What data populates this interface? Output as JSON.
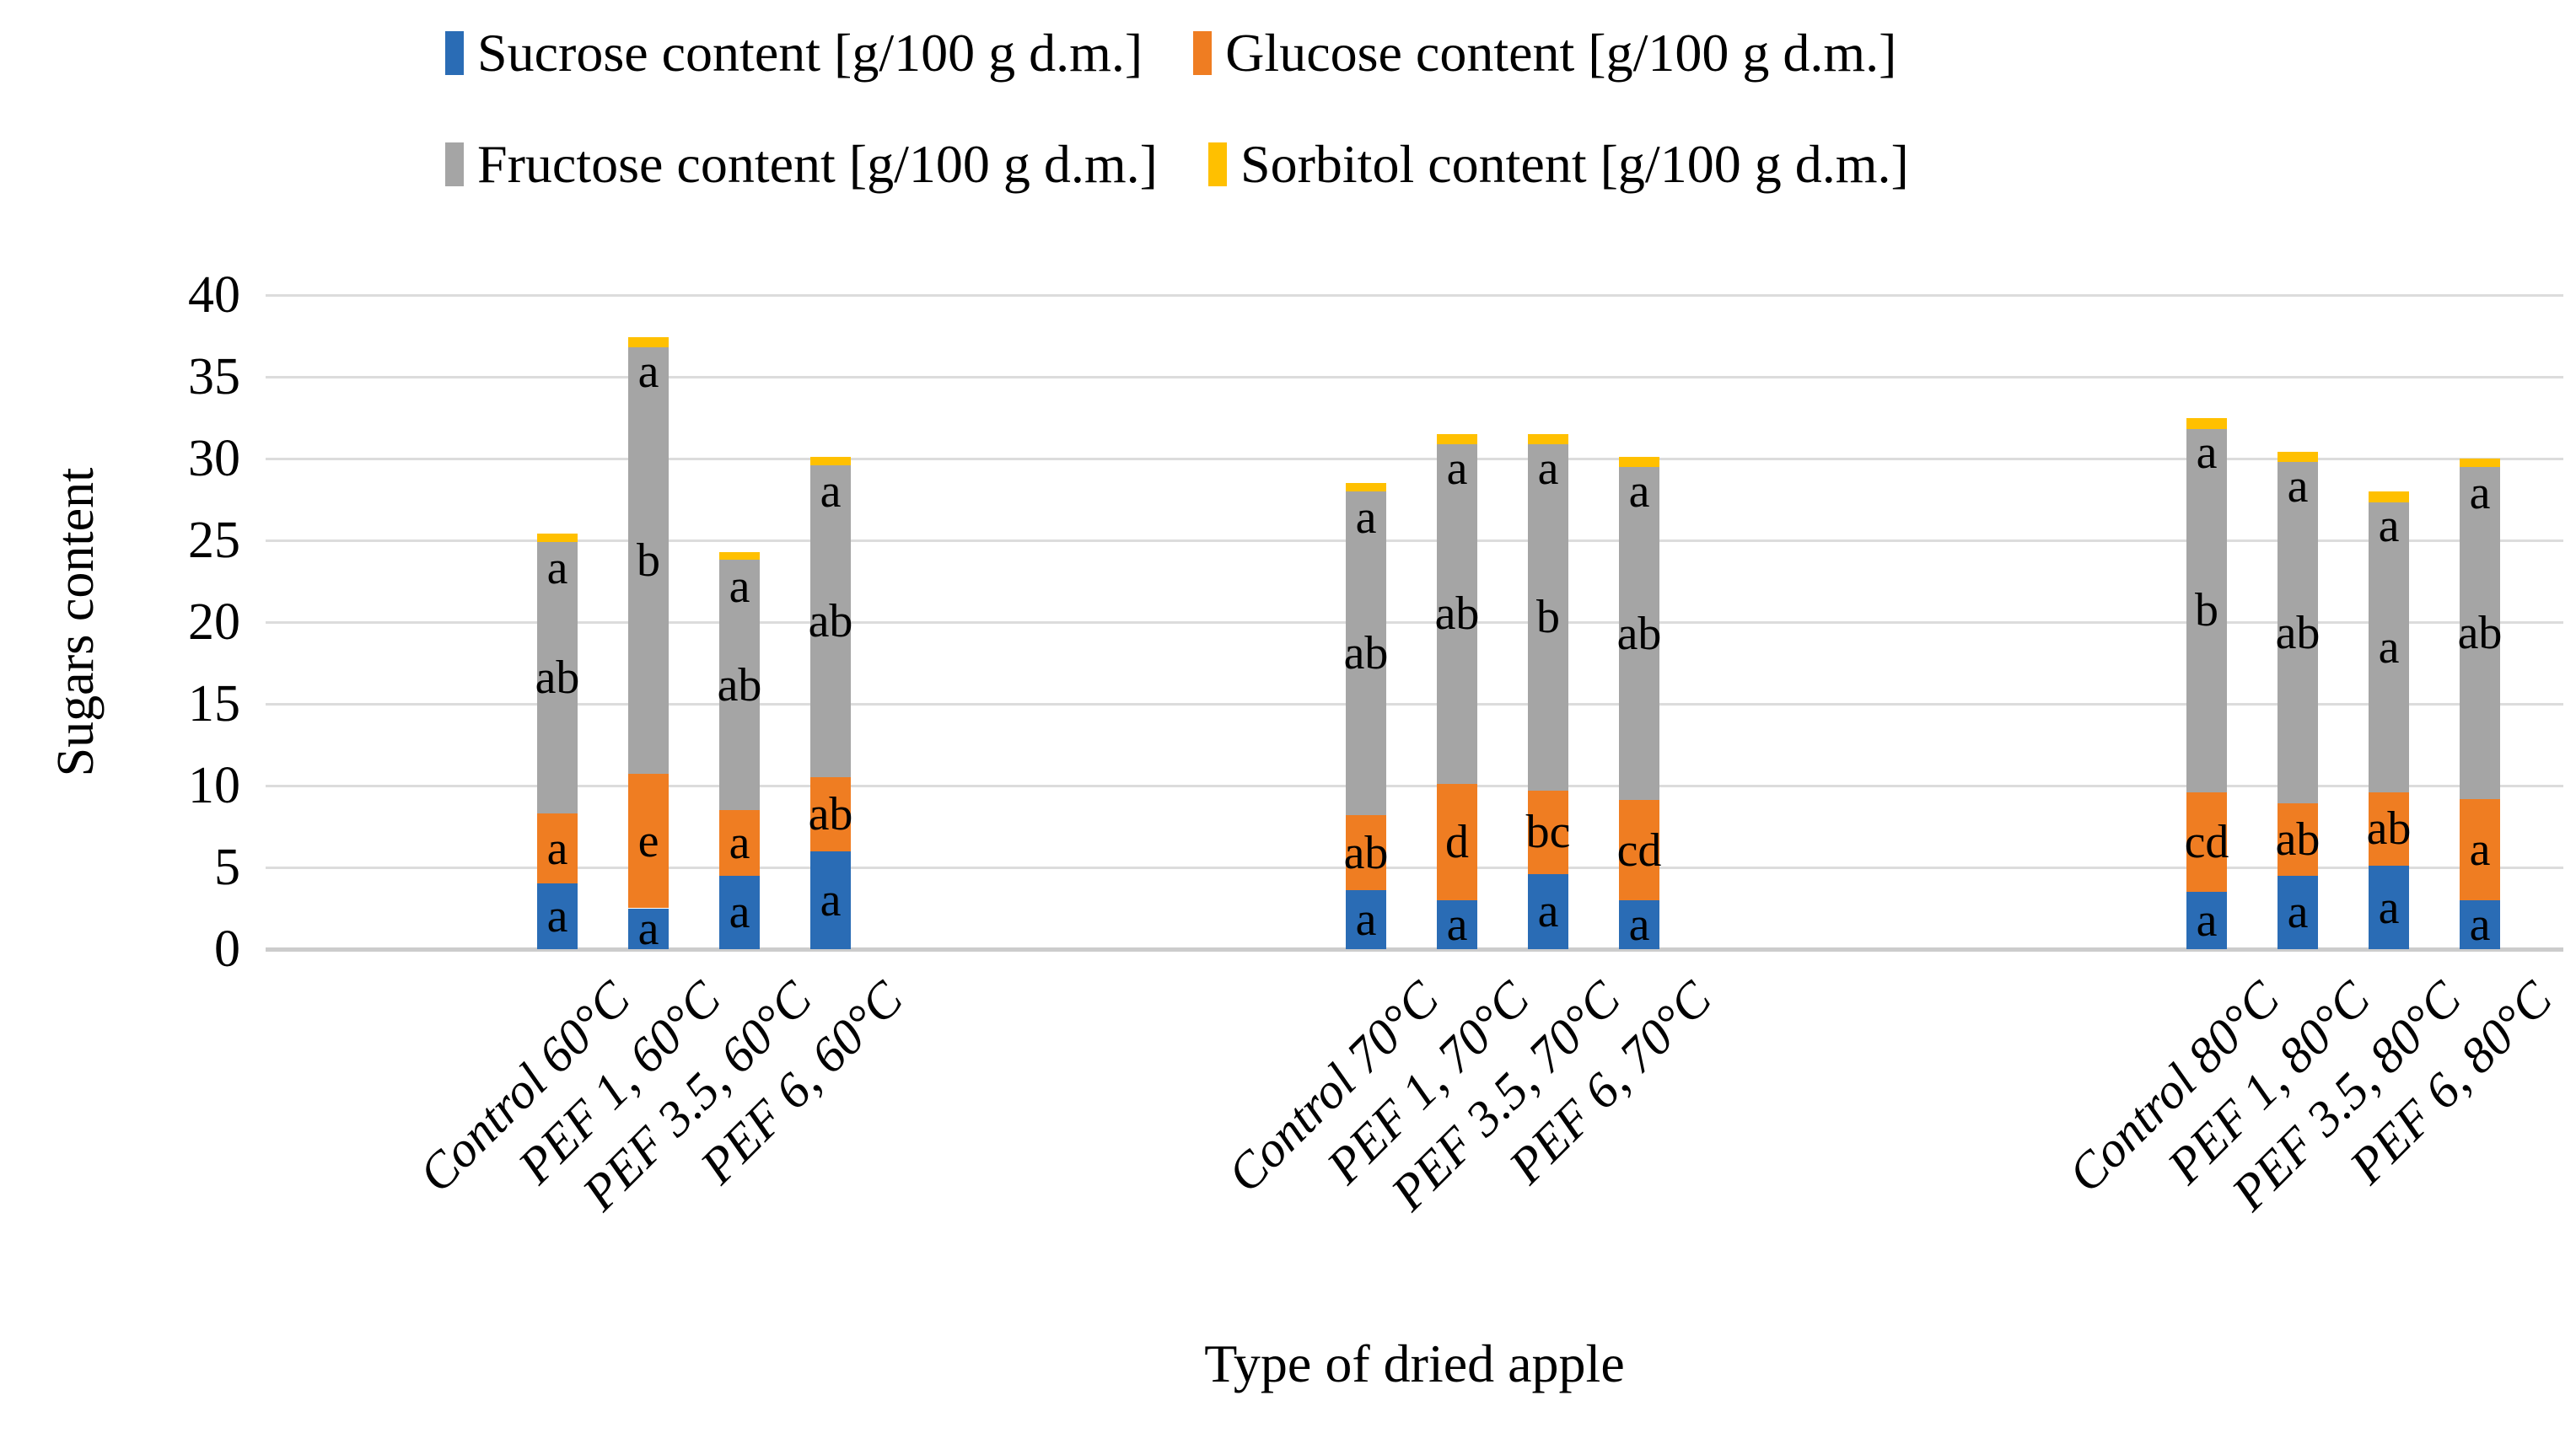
{
  "chart_data": {
    "type": "bar",
    "stacked": true,
    "xlabel": "Type of dried apple",
    "ylabel": "Sugars content",
    "ylim": [
      0,
      40
    ],
    "yticks": [
      0,
      5,
      10,
      15,
      20,
      25,
      30,
      35,
      40
    ],
    "grid": true,
    "legend_position": "top",
    "groups": [
      "60°C",
      "70°C",
      "80°C"
    ],
    "categories": [
      "Control 60°C",
      "PEF 1, 60°C",
      "PEF 3.5, 60°C",
      "PEF 6, 60°C",
      "Control 70°C",
      "PEF 1, 70°C",
      "PEF 3.5, 70°C",
      "PEF 6, 70°C",
      "Control 80°C",
      "PEF 1, 80°C",
      "PEF 3.5, 80°C",
      "PEF 6, 80°C"
    ],
    "series": [
      {
        "name": "Sucrose content [g/100 g d.m.]",
        "color": "#2a6cb5",
        "values": [
          4.0,
          2.5,
          4.5,
          6.0,
          3.6,
          3.0,
          4.6,
          3.0,
          3.5,
          4.5,
          5.1,
          3.0
        ],
        "letters": [
          "a",
          "a",
          "a",
          "a",
          "a",
          "a",
          "a",
          "a",
          "a",
          "a",
          "a",
          "a"
        ]
      },
      {
        "name": "Glucose content [g/100 g d.m.]",
        "color": "#ef7d22",
        "values": [
          4.3,
          8.2,
          4.0,
          4.5,
          4.6,
          7.1,
          5.1,
          6.1,
          6.1,
          4.4,
          4.5,
          6.2
        ],
        "letters": [
          "a",
          "e",
          "a",
          "ab",
          "ab",
          "d",
          "bc",
          "cd",
          "cd",
          "ab",
          "ab",
          "a"
        ]
      },
      {
        "name": "Fructose content [g/100 g d.m.]",
        "color": "#a5a5a5",
        "values": [
          16.6,
          26.1,
          15.3,
          19.1,
          19.8,
          20.8,
          21.2,
          20.4,
          22.2,
          20.9,
          17.7,
          20.3
        ],
        "letters": [
          "ab",
          "b",
          "ab",
          "ab",
          "ab",
          "ab",
          "b",
          "ab",
          "b",
          "ab",
          "a",
          "ab"
        ]
      },
      {
        "name": "Sorbitol content [g/100 g d.m.]",
        "color": "#ffc000",
        "values": [
          0.5,
          0.6,
          0.5,
          0.5,
          0.5,
          0.6,
          0.6,
          0.6,
          0.7,
          0.6,
          0.7,
          0.5
        ],
        "letters": [
          "a",
          "a",
          "a",
          "a",
          "a",
          "a",
          "a",
          "a",
          "a",
          "a",
          "a",
          "a"
        ]
      }
    ],
    "totals": [
      25.4,
      37.4,
      24.3,
      30.1,
      28.5,
      31.5,
      31.5,
      30.1,
      32.5,
      30.4,
      28.0,
      30.0
    ]
  }
}
